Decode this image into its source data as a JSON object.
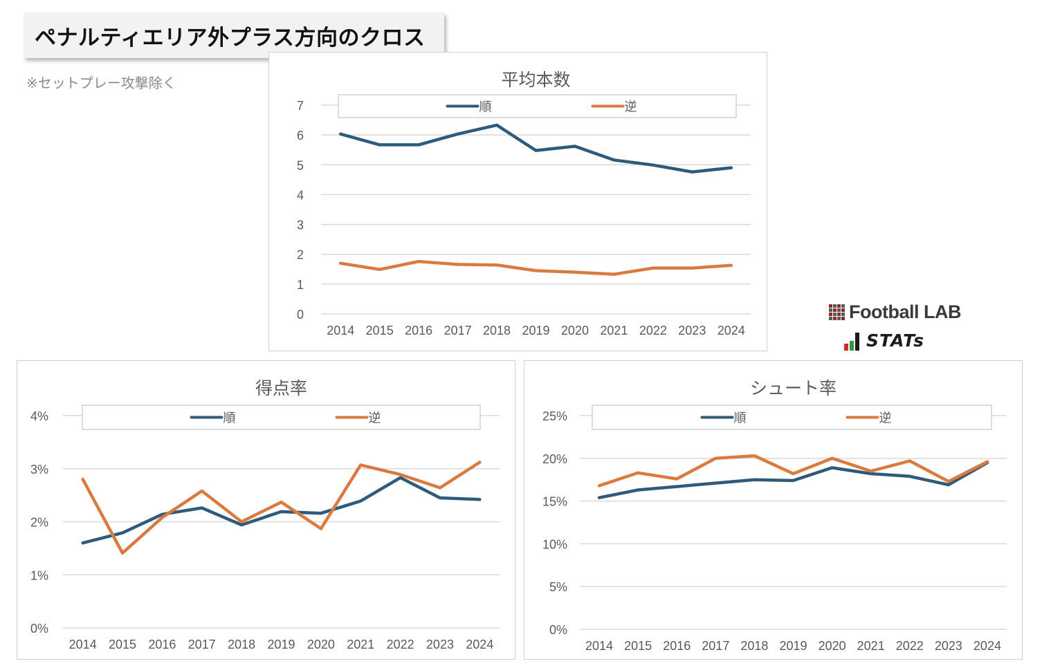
{
  "header": {
    "title": "ペナルティエリア外プラス方向のクロス",
    "note": "※セットプレー攻撃除く"
  },
  "logo": {
    "brand1": "Football LAB",
    "brand2": "STATs"
  },
  "colors": {
    "jun": "#2e5b7c",
    "gyaku": "#d97a3f",
    "grid": "#d9d9d9",
    "axis_text": "#595959",
    "title_text": "#595959"
  },
  "chart_data": [
    {
      "id": "avg",
      "type": "line",
      "title": "平均本数",
      "categories": [
        "2014",
        "2015",
        "2016",
        "2017",
        "2018",
        "2019",
        "2020",
        "2021",
        "2022",
        "2023",
        "2024"
      ],
      "series": [
        {
          "name": "順",
          "values": [
            6.03,
            5.67,
            5.67,
            6.03,
            6.33,
            5.48,
            5.62,
            5.16,
            4.99,
            4.76,
            4.9
          ]
        },
        {
          "name": "逆",
          "values": [
            1.7,
            1.49,
            1.76,
            1.66,
            1.64,
            1.45,
            1.4,
            1.33,
            1.54,
            1.54,
            1.63
          ]
        }
      ],
      "ylim": [
        0,
        7
      ],
      "yticks": [
        0,
        1,
        2,
        3,
        4,
        5,
        6,
        7
      ],
      "ytick_labels": [
        "0",
        "1",
        "2",
        "3",
        "4",
        "5",
        "6",
        "7"
      ],
      "legend": "top",
      "grid": true
    },
    {
      "id": "score",
      "type": "line",
      "title": "得点率",
      "categories": [
        "2014",
        "2015",
        "2016",
        "2017",
        "2018",
        "2019",
        "2020",
        "2021",
        "2022",
        "2023",
        "2024"
      ],
      "series": [
        {
          "name": "順",
          "values": [
            1.6,
            1.79,
            2.14,
            2.26,
            1.94,
            2.19,
            2.16,
            2.39,
            2.83,
            2.45,
            2.42
          ]
        },
        {
          "name": "逆",
          "values": [
            2.8,
            1.41,
            2.08,
            2.58,
            2.0,
            2.37,
            1.87,
            3.07,
            2.89,
            2.64,
            3.12
          ]
        }
      ],
      "ylim": [
        0,
        4
      ],
      "yticks": [
        0,
        1,
        2,
        3,
        4
      ],
      "ytick_labels": [
        "0%",
        "1%",
        "2%",
        "3%",
        "4%"
      ],
      "legend": "top",
      "grid": true
    },
    {
      "id": "shot",
      "type": "line",
      "title": "シュート率",
      "categories": [
        "2014",
        "2015",
        "2016",
        "2017",
        "2018",
        "2019",
        "2020",
        "2021",
        "2022",
        "2023",
        "2024"
      ],
      "series": [
        {
          "name": "順",
          "values": [
            15.4,
            16.3,
            16.7,
            17.1,
            17.5,
            17.4,
            18.9,
            18.2,
            17.9,
            16.9,
            19.5
          ]
        },
        {
          "name": "逆",
          "values": [
            16.8,
            18.3,
            17.6,
            20.0,
            20.3,
            18.2,
            20.0,
            18.5,
            19.7,
            17.3,
            19.6
          ]
        }
      ],
      "ylim": [
        0,
        25
      ],
      "yticks": [
        0,
        5,
        10,
        15,
        20,
        25
      ],
      "ytick_labels": [
        "0%",
        "5%",
        "10%",
        "15%",
        "20%",
        "25%"
      ],
      "legend": "top",
      "grid": true
    }
  ]
}
